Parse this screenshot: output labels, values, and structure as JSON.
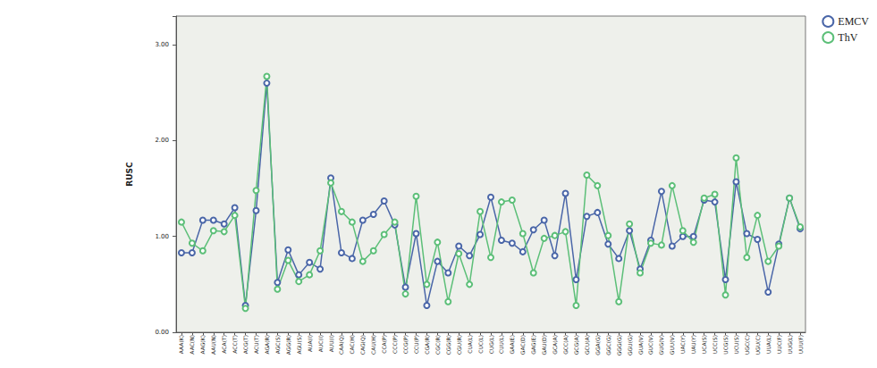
{
  "chart_data": {
    "type": "line",
    "y_label": "RUSC",
    "categories": [
      "AAA(K)",
      "AAC(N)",
      "AAG(K)",
      "AAU(N)",
      "ACA(T)",
      "ACC(T)",
      "ACG(T)",
      "ACU(T)",
      "AGA(R)",
      "AGC(S)",
      "AGG(R)",
      "AGU(S)",
      "AUA(I)",
      "AUC(I)",
      "AUU(I)",
      "CAA(Q)",
      "CAC(H)",
      "CAG(Q)",
      "CAU(H)",
      "CCA(P)",
      "CCC(P)",
      "CCG(P)",
      "CCU(P)",
      "CGA(R)",
      "CGC(R)",
      "CGG(R)",
      "CGU(R)",
      "CUA(L)",
      "CUC(L)",
      "CUG(L)",
      "CUU(L)",
      "GAA(E)",
      "GAC(D)",
      "GAG(E)",
      "GAU(D)",
      "GCA(A)",
      "GCC(A)",
      "GCG(A)",
      "GCU(A)",
      "GGA(G)",
      "GGC(G)",
      "GGG(G)",
      "GGU(G)",
      "GUA(V)",
      "GUC(V)",
      "GUG(V)",
      "GUU(V)",
      "UAC(Y)",
      "UAU(Y)",
      "UCA(S)",
      "UCC(S)",
      "UCG(S)",
      "UCU(S)",
      "UGC(C)",
      "UGU(C)",
      "UUA(L)",
      "UUC(F)",
      "UUG(L)",
      "UUU(F)"
    ],
    "series": [
      {
        "name": "EMCV",
        "color": "#4a66a8",
        "marker": "circle",
        "values": [
          0.83,
          0.83,
          1.17,
          1.17,
          1.13,
          1.3,
          0.28,
          1.27,
          2.6,
          0.52,
          0.86,
          0.6,
          0.73,
          0.66,
          1.61,
          0.83,
          0.77,
          1.17,
          1.23,
          1.37,
          1.12,
          0.47,
          1.03,
          0.28,
          0.74,
          0.62,
          0.9,
          0.8,
          1.02,
          1.41,
          0.96,
          0.93,
          0.84,
          1.07,
          1.17,
          0.8,
          1.45,
          0.55,
          1.21,
          1.25,
          0.92,
          0.77,
          1.06,
          0.66,
          0.96,
          1.47,
          0.9,
          1.0,
          1.0,
          1.38,
          1.36,
          0.55,
          1.57,
          1.03,
          0.97,
          0.42,
          0.92,
          1.4,
          1.08
        ]
      },
      {
        "name": "ThV",
        "color": "#5cbf78",
        "marker": "circle",
        "values": [
          1.15,
          0.93,
          0.85,
          1.06,
          1.05,
          1.22,
          0.25,
          1.48,
          2.67,
          0.45,
          0.75,
          0.53,
          0.6,
          0.85,
          1.56,
          1.26,
          1.15,
          0.74,
          0.85,
          1.02,
          1.15,
          0.4,
          1.42,
          0.5,
          0.94,
          0.32,
          0.82,
          0.5,
          1.26,
          0.78,
          1.36,
          1.38,
          1.03,
          0.62,
          0.98,
          1.01,
          1.05,
          0.28,
          1.64,
          1.53,
          1.01,
          0.32,
          1.13,
          0.62,
          0.93,
          0.91,
          1.53,
          1.06,
          0.94,
          1.4,
          1.44,
          0.39,
          1.82,
          0.78,
          1.22,
          0.74,
          0.9,
          1.4,
          1.1
        ]
      }
    ],
    "ylim": [
      0,
      3.3
    ],
    "yticks": [
      {
        "value": 0,
        "label": "0.00"
      },
      {
        "value": 1,
        "label": "1.00"
      },
      {
        "value": 2,
        "label": "2.00"
      },
      {
        "value": 3,
        "label": "3.00"
      }
    ],
    "grid": false,
    "legend": "right"
  }
}
